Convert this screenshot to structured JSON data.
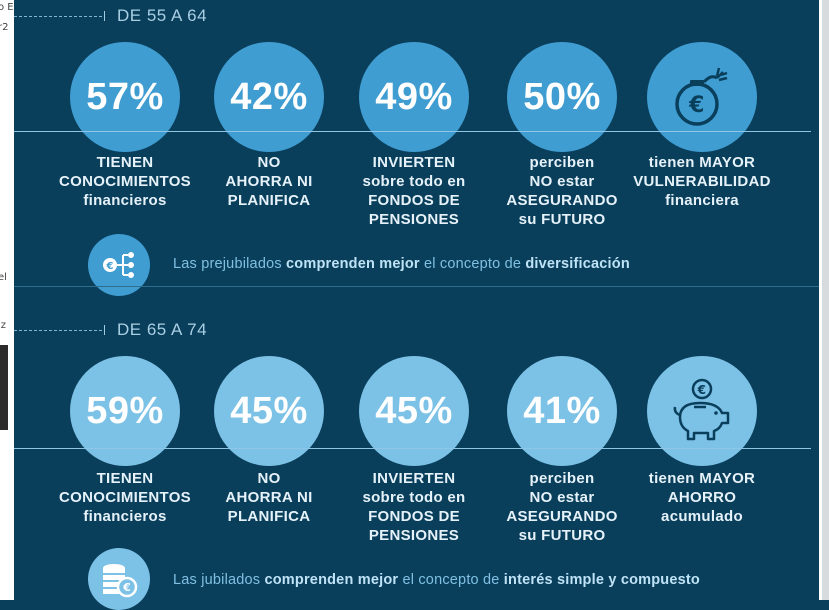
{
  "sections": [
    {
      "age_range": "DE 55 A 64",
      "stats": [
        {
          "value": "57%",
          "label_lines": [
            "TIENEN",
            "CONOCIMIENTOS",
            "financieros"
          ]
        },
        {
          "value": "42%",
          "label_lines": [
            "NO",
            "AHORRA NI",
            "PLANIFICA"
          ]
        },
        {
          "value": "49%",
          "label_lines": [
            "INVIERTEN",
            "sobre todo en",
            "FONDOS DE",
            "PENSIONES"
          ]
        },
        {
          "value": "50%",
          "label_lines": [
            "perciben",
            "NO estar",
            "ASEGURANDO",
            "su FUTURO"
          ]
        },
        {
          "icon": "euro-bomb-icon",
          "label_lines": [
            "tienen MAYOR",
            "VULNERABILIDAD",
            "financiera"
          ]
        }
      ],
      "insight": {
        "icon": "euro-network-icon",
        "pre": "Las prejubilados ",
        "bold1": "comprenden mejor",
        "mid": " el concepto de ",
        "bold2": "diversificación"
      }
    },
    {
      "age_range": "DE 65 A 74",
      "stats": [
        {
          "value": "59%",
          "label_lines": [
            "TIENEN",
            "CONOCIMIENTOS",
            "financieros"
          ]
        },
        {
          "value": "45%",
          "label_lines": [
            "NO",
            "AHORRA NI",
            "PLANIFICA"
          ]
        },
        {
          "value": "45%",
          "label_lines": [
            "INVIERTEN",
            "sobre todo en",
            "FONDOS DE",
            "PENSIONES"
          ]
        },
        {
          "value": "41%",
          "label_lines": [
            "perciben",
            "NO estar",
            "ASEGURANDO",
            "su FUTURO"
          ]
        },
        {
          "icon": "piggy-bank-icon",
          "label_lines": [
            "tienen MAYOR",
            "AHORRO",
            "acumulado"
          ]
        }
      ],
      "insight": {
        "icon": "coin-stack-icon",
        "pre": "Las jubilados ",
        "bold1": "comprenden mejor",
        "mid": " el concepto de ",
        "bold2": "interés simple y compuesto"
      }
    }
  ],
  "colors": {
    "background": "#0a3f5c",
    "circle_section1": "#3f9dd1",
    "circle_section2": "#7cc1e6",
    "divider": "#8fc6e6",
    "insight_text": "#7fc0e2",
    "insight_bold": "#bfe3f6"
  }
}
